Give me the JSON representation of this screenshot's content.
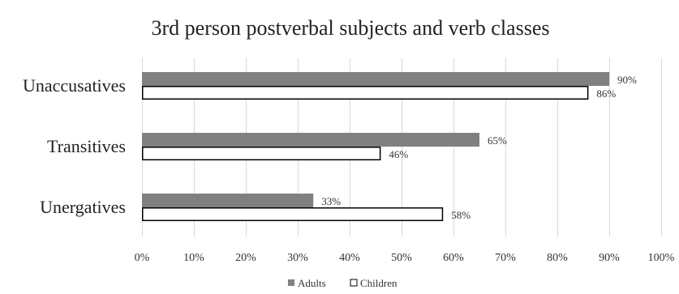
{
  "chart_data": {
    "type": "bar",
    "orientation": "horizontal",
    "title": "3rd person postverbal subjects and verb classes",
    "xlabel": "",
    "ylabel": "",
    "categories": [
      "Unaccusatives",
      "Transitives",
      "Unergatives"
    ],
    "series": [
      {
        "name": "Adults",
        "values": [
          90,
          65,
          33
        ],
        "labels": [
          "90%",
          "65%",
          "33%"
        ],
        "color": "#808080",
        "style": "filled"
      },
      {
        "name": "Children",
        "values": [
          86,
          46,
          58
        ],
        "labels": [
          "86%",
          "46%",
          "58%"
        ],
        "color": "#ffffff",
        "stroke": "#000000",
        "style": "outline"
      }
    ],
    "xlim": [
      0,
      100
    ],
    "xticks": [
      0,
      10,
      20,
      30,
      40,
      50,
      60,
      70,
      80,
      90,
      100
    ],
    "xtick_labels": [
      "0%",
      "10%",
      "20%",
      "30%",
      "40%",
      "50%",
      "60%",
      "70%",
      "80%",
      "90%",
      "100%"
    ],
    "grid": true,
    "legend": "bottom"
  }
}
